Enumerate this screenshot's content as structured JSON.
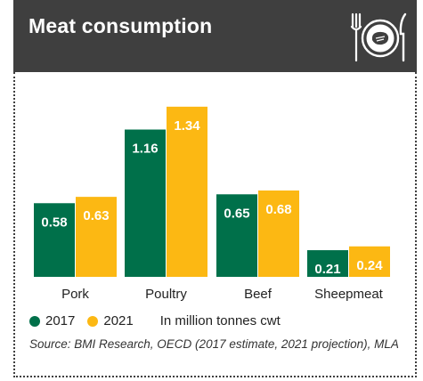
{
  "header": {
    "title": "Meat consumption",
    "icon": "plate-fork-knife-steak-icon"
  },
  "legend": {
    "items": [
      {
        "label": "2017",
        "color": "#00704a"
      },
      {
        "label": "2021",
        "color": "#fcb813"
      }
    ],
    "unit": "In million tonnes cwt"
  },
  "source": "Source: BMI Research, OECD (2017 estimate, 2021 projection), MLA",
  "chart_data": {
    "type": "bar",
    "categories": [
      "Pork",
      "Poultry",
      "Beef",
      "Sheepmeat"
    ],
    "series": [
      {
        "name": "2017",
        "values": [
          0.58,
          1.16,
          0.65,
          0.21
        ],
        "labels": [
          "0.58",
          "1.16",
          "0.65",
          "0.21"
        ],
        "color": "#00704a"
      },
      {
        "name": "2021",
        "values": [
          0.63,
          1.34,
          0.68,
          0.24
        ],
        "labels": [
          "0.63",
          "1.34",
          "0.68",
          "0.24"
        ],
        "color": "#fcb813"
      }
    ],
    "ylim": [
      0,
      1.36
    ],
    "grid": false,
    "legend_position": "bottom-left"
  }
}
